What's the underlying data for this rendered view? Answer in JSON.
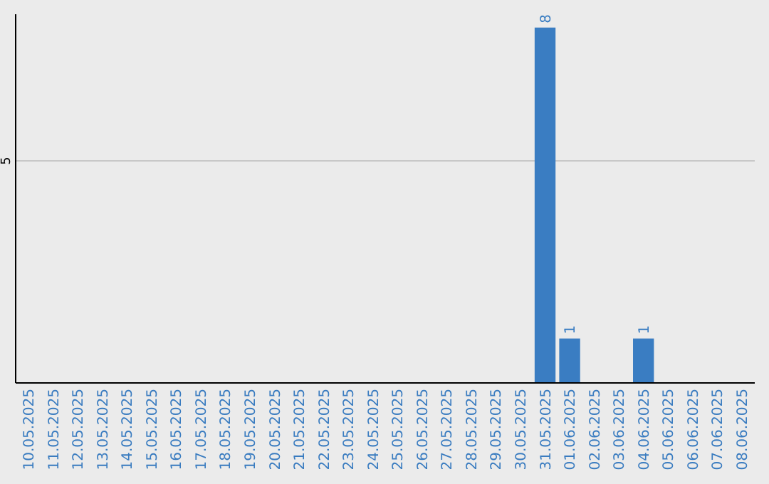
{
  "chart_data": {
    "type": "bar",
    "categories": [
      "10.05.2025",
      "11.05.2025",
      "12.05.2025",
      "13.05.2025",
      "14.05.2025",
      "15.05.2025",
      "16.05.2025",
      "17.05.2025",
      "18.05.2025",
      "19.05.2025",
      "20.05.2025",
      "21.05.2025",
      "22.05.2025",
      "23.05.2025",
      "24.05.2025",
      "25.05.2025",
      "26.05.2025",
      "27.05.2025",
      "28.05.2025",
      "29.05.2025",
      "30.05.2025",
      "31.05.2025",
      "01.06.2025",
      "02.06.2025",
      "03.06.2025",
      "04.06.2025",
      "05.06.2025",
      "06.06.2025",
      "07.06.2025",
      "08.06.2025"
    ],
    "values": [
      null,
      null,
      null,
      null,
      null,
      null,
      null,
      null,
      null,
      null,
      null,
      null,
      null,
      null,
      null,
      null,
      null,
      null,
      null,
      null,
      null,
      8,
      1,
      null,
      null,
      1,
      null,
      null,
      null,
      null
    ],
    "data_labels": true,
    "color": "#3a7dc2",
    "ylim": [
      0,
      8.3
    ],
    "yticks": [
      5
    ],
    "grid": "y"
  }
}
